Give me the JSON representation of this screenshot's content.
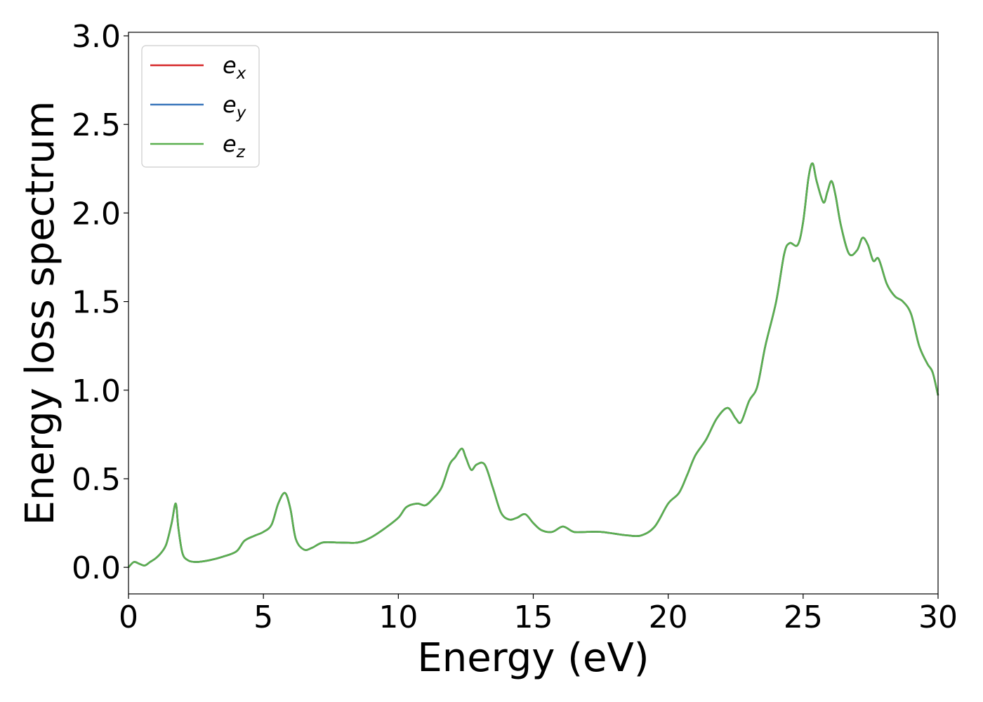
{
  "chart_data": {
    "type": "line",
    "title": "",
    "xlabel": "Energy (eV)",
    "ylabel": "Energy loss spectrum",
    "xlim": [
      0,
      30
    ],
    "ylim": [
      -0.15,
      3.02
    ],
    "xticks": [
      "0",
      "5",
      "10",
      "15",
      "20",
      "25",
      "30"
    ],
    "yticks": [
      "0.0",
      "0.5",
      "1.0",
      "1.5",
      "2.0",
      "2.5",
      "3.0"
    ],
    "grid": false,
    "legend_position": "top-left",
    "x": [
      0.0,
      0.2,
      0.4,
      0.6,
      0.8,
      1.0,
      1.2,
      1.4,
      1.6,
      1.75,
      1.85,
      2.0,
      2.2,
      2.5,
      3.0,
      3.5,
      4.0,
      4.3,
      4.7,
      5.0,
      5.3,
      5.55,
      5.8,
      6.0,
      6.2,
      6.5,
      6.8,
      7.2,
      7.8,
      8.5,
      9.0,
      9.5,
      10.0,
      10.3,
      10.7,
      11.0,
      11.3,
      11.6,
      11.9,
      12.1,
      12.35,
      12.5,
      12.7,
      12.9,
      13.2,
      13.5,
      13.8,
      14.1,
      14.4,
      14.7,
      15.0,
      15.3,
      15.7,
      16.1,
      16.5,
      17.0,
      17.5,
      18.0,
      18.5,
      19.0,
      19.5,
      20.0,
      20.4,
      20.7,
      21.0,
      21.4,
      21.8,
      22.2,
      22.5,
      22.7,
      23.0,
      23.3,
      23.6,
      24.0,
      24.3,
      24.5,
      24.8,
      25.0,
      25.2,
      25.35,
      25.5,
      25.75,
      25.9,
      26.05,
      26.2,
      26.4,
      26.7,
      27.0,
      27.2,
      27.4,
      27.6,
      27.8,
      28.1,
      28.4,
      28.7,
      29.0,
      29.3,
      29.6,
      29.8,
      30.0
    ],
    "series": [
      {
        "name": "e_x",
        "label_base": "e",
        "label_sub": "x",
        "color": "#d62728",
        "values": [
          0.0,
          0.03,
          0.02,
          0.01,
          0.03,
          0.05,
          0.08,
          0.13,
          0.25,
          0.36,
          0.22,
          0.08,
          0.04,
          0.03,
          0.04,
          0.06,
          0.09,
          0.15,
          0.18,
          0.2,
          0.24,
          0.36,
          0.42,
          0.33,
          0.16,
          0.1,
          0.11,
          0.14,
          0.14,
          0.14,
          0.17,
          0.22,
          0.28,
          0.34,
          0.36,
          0.35,
          0.39,
          0.45,
          0.58,
          0.62,
          0.67,
          0.62,
          0.55,
          0.58,
          0.58,
          0.45,
          0.31,
          0.27,
          0.28,
          0.3,
          0.25,
          0.21,
          0.2,
          0.23,
          0.2,
          0.2,
          0.2,
          0.19,
          0.18,
          0.18,
          0.23,
          0.36,
          0.42,
          0.52,
          0.63,
          0.72,
          0.84,
          0.9,
          0.84,
          0.82,
          0.94,
          1.02,
          1.25,
          1.5,
          1.77,
          1.83,
          1.82,
          1.95,
          2.2,
          2.28,
          2.18,
          2.06,
          2.12,
          2.18,
          2.1,
          1.93,
          1.77,
          1.79,
          1.86,
          1.82,
          1.73,
          1.74,
          1.6,
          1.53,
          1.5,
          1.43,
          1.25,
          1.15,
          1.1,
          0.97
        ]
      },
      {
        "name": "e_y",
        "label_base": "e",
        "label_sub": "y",
        "color": "#3a77bb",
        "values": [
          0.0,
          0.03,
          0.02,
          0.01,
          0.03,
          0.05,
          0.08,
          0.13,
          0.25,
          0.36,
          0.22,
          0.08,
          0.04,
          0.03,
          0.04,
          0.06,
          0.09,
          0.15,
          0.18,
          0.2,
          0.24,
          0.36,
          0.42,
          0.33,
          0.16,
          0.1,
          0.11,
          0.14,
          0.14,
          0.14,
          0.17,
          0.22,
          0.28,
          0.34,
          0.36,
          0.35,
          0.39,
          0.45,
          0.58,
          0.62,
          0.67,
          0.62,
          0.55,
          0.58,
          0.58,
          0.45,
          0.31,
          0.27,
          0.28,
          0.3,
          0.25,
          0.21,
          0.2,
          0.23,
          0.2,
          0.2,
          0.2,
          0.19,
          0.18,
          0.18,
          0.23,
          0.36,
          0.42,
          0.52,
          0.63,
          0.72,
          0.84,
          0.9,
          0.84,
          0.82,
          0.94,
          1.02,
          1.25,
          1.5,
          1.77,
          1.83,
          1.82,
          1.95,
          2.2,
          2.28,
          2.18,
          2.06,
          2.12,
          2.18,
          2.1,
          1.93,
          1.77,
          1.79,
          1.86,
          1.82,
          1.73,
          1.74,
          1.6,
          1.53,
          1.5,
          1.43,
          1.25,
          1.15,
          1.1,
          0.97
        ]
      },
      {
        "name": "e_z",
        "label_base": "e",
        "label_sub": "z",
        "color": "#5aaf4f",
        "values": [
          0.0,
          0.03,
          0.02,
          0.01,
          0.03,
          0.05,
          0.08,
          0.13,
          0.25,
          0.36,
          0.22,
          0.08,
          0.04,
          0.03,
          0.04,
          0.06,
          0.09,
          0.15,
          0.18,
          0.2,
          0.24,
          0.36,
          0.42,
          0.33,
          0.16,
          0.1,
          0.11,
          0.14,
          0.14,
          0.14,
          0.17,
          0.22,
          0.28,
          0.34,
          0.36,
          0.35,
          0.39,
          0.45,
          0.58,
          0.62,
          0.67,
          0.62,
          0.55,
          0.58,
          0.58,
          0.45,
          0.31,
          0.27,
          0.28,
          0.3,
          0.25,
          0.21,
          0.2,
          0.23,
          0.2,
          0.2,
          0.2,
          0.19,
          0.18,
          0.18,
          0.23,
          0.36,
          0.42,
          0.52,
          0.63,
          0.72,
          0.84,
          0.9,
          0.84,
          0.82,
          0.94,
          1.02,
          1.25,
          1.5,
          1.77,
          1.83,
          1.82,
          1.95,
          2.2,
          2.28,
          2.18,
          2.06,
          2.12,
          2.18,
          2.1,
          1.93,
          1.77,
          1.79,
          1.86,
          1.82,
          1.73,
          1.74,
          1.6,
          1.53,
          1.5,
          1.43,
          1.25,
          1.15,
          1.1,
          0.97
        ]
      }
    ]
  }
}
